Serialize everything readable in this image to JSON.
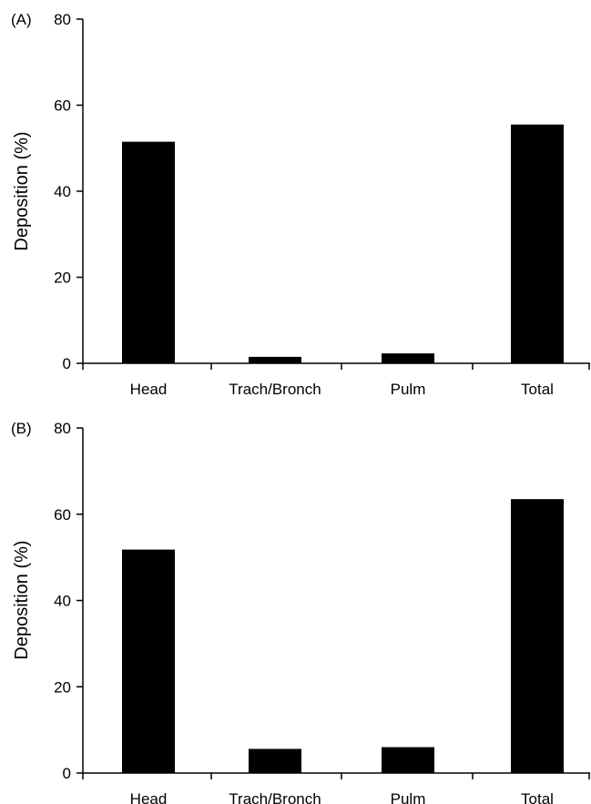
{
  "chart_data": [
    {
      "type": "bar",
      "panel": "(A)",
      "categories": [
        "Head",
        "Trach/Bronch",
        "Pulm",
        "Total"
      ],
      "values": [
        51.5,
        1.5,
        2.3,
        55.5
      ],
      "ylabel": "Deposition (%)",
      "ylim": [
        0,
        80
      ],
      "yticks": [
        "0",
        "20",
        "40",
        "60",
        "80"
      ],
      "bar_color": "#000000",
      "grid": false
    },
    {
      "type": "bar",
      "panel": "(B)",
      "categories": [
        "Head",
        "Trach/Bronch",
        "Pulm",
        "Total"
      ],
      "values": [
        51.8,
        5.6,
        6.0,
        63.5
      ],
      "ylabel": "Deposition (%)",
      "ylim": [
        0,
        80
      ],
      "yticks": [
        "0",
        "20",
        "40",
        "60",
        "80"
      ],
      "bar_color": "#000000",
      "grid": false
    }
  ]
}
